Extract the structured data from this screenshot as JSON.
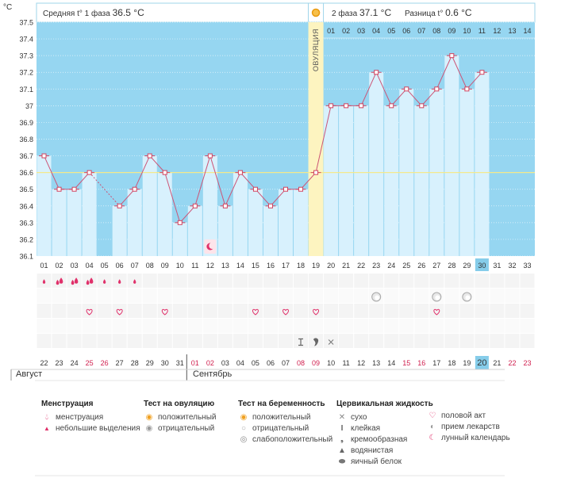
{
  "chart_data": {
    "type": "bar",
    "yunit": "°C",
    "ylim": [
      36.1,
      37.5
    ],
    "yticks": [
      "36.1",
      "36.2",
      "36.3",
      "36.4",
      "36.5",
      "36.6",
      "36.7",
      "36.8",
      "36.9",
      "37",
      "37.1",
      "37.2",
      "37.3",
      "37.4",
      "37.5"
    ],
    "coverline": 36.6,
    "ovulation_day": 19,
    "ovulation_label": "ОВУЛЯЦИЯ",
    "phase1": {
      "label": "Средняя t° 1 фаза",
      "value": "36.5 °C"
    },
    "phase2": {
      "label": "2 фаза",
      "value": "37.1 °C"
    },
    "difference": {
      "label": "Разница t°",
      "value": "0.6 °C"
    },
    "cycle_days": [
      "01",
      "02",
      "03",
      "04",
      "05",
      "06",
      "07",
      "08",
      "09",
      "10",
      "11",
      "12",
      "13",
      "14",
      "15",
      "16",
      "17",
      "18",
      "19",
      "20",
      "21",
      "22",
      "23",
      "24",
      "25",
      "26",
      "27",
      "28",
      "29",
      "30",
      "31",
      "32",
      "33"
    ],
    "post_ovulation_days": [
      "01",
      "02",
      "03",
      "04",
      "05",
      "06",
      "07",
      "08",
      "09",
      "10",
      "11",
      "12",
      "13",
      "14"
    ],
    "today_cycle_day": "30",
    "temperatures": [
      36.7,
      36.5,
      36.5,
      36.6,
      null,
      36.4,
      36.5,
      36.7,
      36.6,
      36.3,
      36.4,
      36.7,
      36.4,
      36.6,
      36.5,
      36.4,
      36.5,
      36.5,
      36.6,
      37.0,
      37.0,
      37.0,
      37.2,
      37.0,
      37.1,
      37.0,
      37.1,
      37.3,
      37.1,
      37.2,
      null,
      null,
      null
    ],
    "calendar_dates": [
      "22",
      "23",
      "24",
      "25",
      "26",
      "27",
      "28",
      "29",
      "30",
      "31",
      "01",
      "02",
      "03",
      "04",
      "05",
      "06",
      "07",
      "08",
      "09",
      "10",
      "11",
      "12",
      "13",
      "14",
      "15",
      "16",
      "17",
      "18",
      "19",
      "20",
      "21",
      "22",
      "23"
    ],
    "weekend_date_indexes": [
      3,
      4,
      10,
      11,
      17,
      18,
      24,
      25,
      31,
      32
    ],
    "today_date": "20",
    "months": [
      {
        "name": "Август"
      },
      {
        "name": "Сентябрь"
      }
    ],
    "markers": {
      "menstruation_heavy": [
        2,
        3,
        4
      ],
      "menstruation_light": [
        1,
        5,
        6,
        7
      ],
      "lunar_calendar": [
        12
      ],
      "pregnancy_weak_positive": [
        23,
        27,
        29
      ],
      "intercourse": [
        4,
        6,
        9,
        15,
        17,
        19,
        27
      ],
      "cervical_fluid": [
        {
          "day": 18,
          "kind": "sticky"
        },
        {
          "day": 19,
          "kind": "creamy"
        },
        {
          "day": 20,
          "kind": "dry"
        }
      ]
    },
    "colors": {
      "background": "#96d6f1",
      "bar": "#d8f1fd",
      "ovulation_band": "#fdf4c0",
      "line": "#cc5577",
      "marker_fill": "#ffffff",
      "marker_stroke": "#d2435f",
      "weekend_text": "#d1204f",
      "today_box": "#86cdea"
    }
  },
  "legend": {
    "menstruation": {
      "title": "Менструация",
      "items": [
        "менструация",
        "небольшие выделения"
      ]
    },
    "ovulation_test": {
      "title": "Тест на овуляцию",
      "items": [
        "положительный",
        "отрицательный"
      ]
    },
    "pregnancy_test": {
      "title": "Тест на беременность",
      "items": [
        "положительный",
        "отрицательный",
        "слабоположительный"
      ]
    },
    "cervical_fluid": {
      "title": "Цервикальная жидкость",
      "items": [
        "сухо",
        "клейкая",
        "кремообразная",
        "водянистая",
        "яичный белок"
      ]
    },
    "other": {
      "items": [
        "половой акт",
        "прием лекарств",
        "лунный календарь"
      ]
    }
  },
  "icons": {
    "menstruation": "blood-drop-icon",
    "light_discharge": "small-drop-icon",
    "ovulation_test": "sun-icon",
    "pregnancy_test": "circle-test-icon",
    "cervical_fluid": "drop-shape-icon",
    "intercourse": "heart-icon",
    "medication": "pill-icon",
    "lunar": "moon-icon"
  }
}
